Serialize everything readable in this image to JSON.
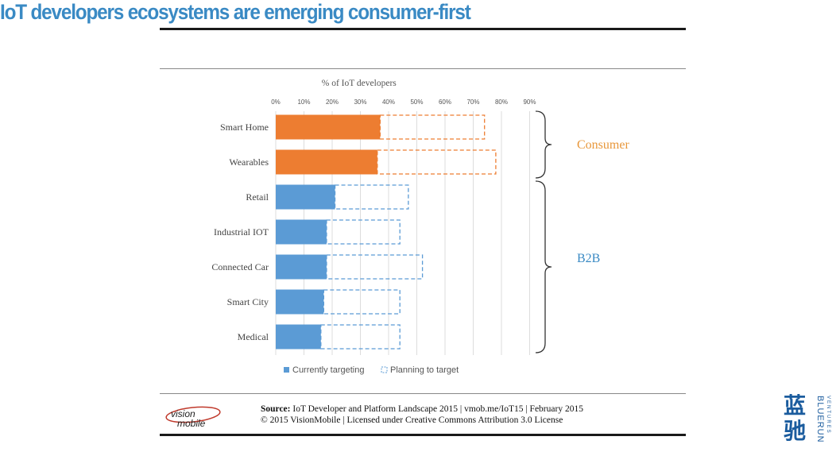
{
  "title": "IoT developers ecosystems are emerging consumer-first",
  "chart_data": {
    "type": "bar",
    "orientation": "horizontal",
    "title": "",
    "xlabel": "% of IoT developers",
    "xlim": [
      0,
      90
    ],
    "x_ticks": [
      "0%",
      "10%",
      "20%",
      "30%",
      "40%",
      "50%",
      "60%",
      "70%",
      "80%",
      "90%"
    ],
    "grid": true,
    "legend_placement": "bottom-left",
    "categories": [
      "Smart Home",
      "Wearables",
      "Retail",
      "Industrial IOT",
      "Connected Car",
      "Smart City",
      "Medical"
    ],
    "series": [
      {
        "name": "Currently targeting",
        "values": [
          37,
          36,
          21,
          18,
          18,
          17,
          16
        ]
      },
      {
        "name": "Planning to target",
        "values": [
          37,
          42,
          26,
          26,
          34,
          27,
          28
        ]
      }
    ],
    "stacked": true,
    "bar_colors": [
      "#ed7d31",
      "#ed7d31",
      "#5b9bd5",
      "#5b9bd5",
      "#5b9bd5",
      "#5b9bd5",
      "#5b9bd5"
    ],
    "groups": [
      {
        "label": "Consumer",
        "color": "#e8973a",
        "categories": [
          "Smart Home",
          "Wearables"
        ]
      },
      {
        "label": "B2B",
        "color": "#3a8ac4",
        "categories": [
          "Retail",
          "Industrial IOT",
          "Connected Car",
          "Smart City",
          "Medical"
        ]
      }
    ]
  },
  "source": {
    "label": "Source:",
    "text": "IoT Developer and Platform Landscape 2015 | vmob.me/IoT15 | February 2015",
    "license": "© 2015 VisionMobile | Licensed under Creative Commons Attribution 3.0 License"
  },
  "logo": {
    "line1": "vision",
    "line2": "mobile"
  },
  "watermark": {
    "chars": [
      "蓝",
      "驰"
    ],
    "text": "BLUERUN",
    "subtext": "VENTURES"
  }
}
